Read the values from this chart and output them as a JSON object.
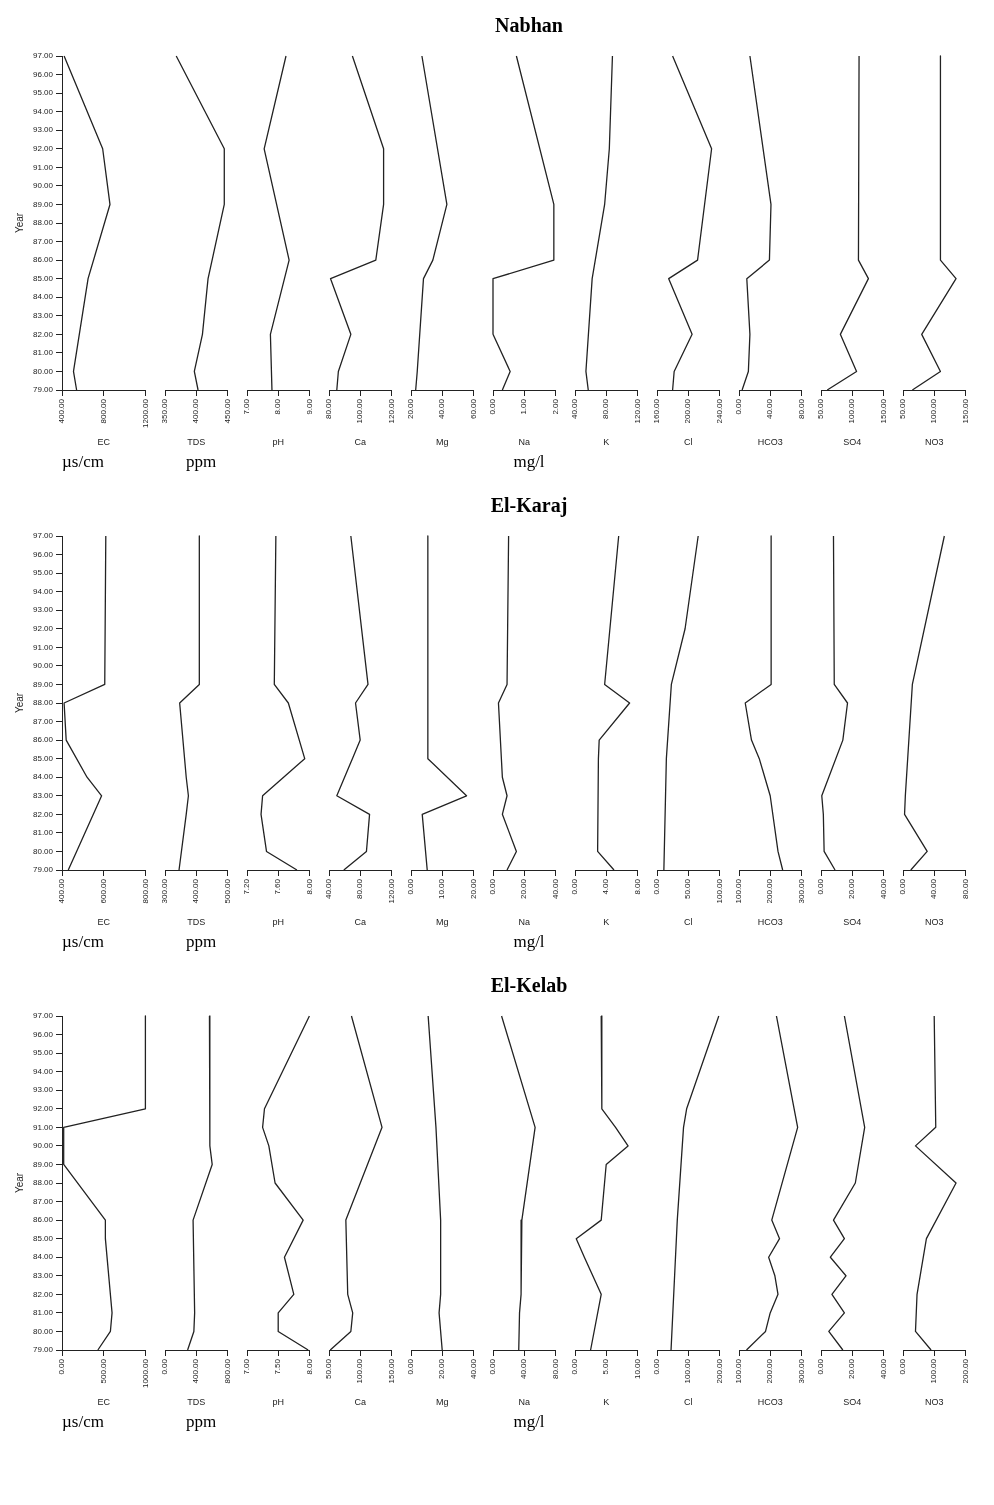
{
  "chart_data": [
    {
      "type": "line",
      "xlabel": "EC",
      "ylabel": "Year",
      "annotations": [
        "µs/cm"
      ],
      "color": "#222222",
      "x": [
        420,
        790,
        860,
        650,
        510,
        540
      ],
      "values": [
        97,
        92,
        89,
        85,
        80,
        79
      ],
      "xlim": [
        400,
        1200
      ],
      "xticks": [
        {
          "value": 400,
          "label": "400.00"
        },
        {
          "value": 800,
          "label": "800.00"
        },
        {
          "value": 1200,
          "label": "1200.00"
        }
      ],
      "ylim": [
        79,
        97
      ],
      "yticks": [
        {
          "value": 79,
          "label": "79.00"
        },
        {
          "value": 80,
          "label": "80.00"
        },
        {
          "value": 81,
          "label": "81.00"
        },
        {
          "value": 82,
          "label": "82.00"
        },
        {
          "value": 83,
          "label": "83.00"
        },
        {
          "value": 84,
          "label": "84.00"
        },
        {
          "value": 85,
          "label": "85.00"
        },
        {
          "value": 86,
          "label": "86.00"
        },
        {
          "value": 87,
          "label": "87.00"
        },
        {
          "value": 88,
          "label": "88.00"
        },
        {
          "value": 89,
          "label": "89.00"
        },
        {
          "value": 90,
          "label": "90.00"
        },
        {
          "value": 91,
          "label": "91.00"
        },
        {
          "value": 92,
          "label": "92.00"
        },
        {
          "value": 93,
          "label": "93.00"
        },
        {
          "value": 94,
          "label": "94.00"
        },
        {
          "value": 95,
          "label": "95.00"
        },
        {
          "value": 96,
          "label": "96.00"
        },
        {
          "value": 97,
          "label": "97.00"
        }
      ]
    },
    {
      "type": "line",
      "xlabel": "TDS",
      "annotations": [
        "ppm"
      ],
      "color": "#222222",
      "x": [
        368,
        445,
        445,
        419,
        410,
        397,
        403
      ],
      "values": [
        97,
        92,
        89,
        85,
        82,
        80,
        79
      ],
      "xlim": [
        350,
        450
      ],
      "xticks": [
        {
          "value": 350,
          "label": "350.00"
        },
        {
          "value": 400,
          "label": "400.00"
        },
        {
          "value": 450,
          "label": "450.00"
        }
      ],
      "ylim": [
        79,
        97
      ],
      "tick_labels": "x"
    },
    {
      "type": "line",
      "xlabel": "pH",
      "color": "#222222",
      "x": [
        8.25,
        7.55,
        8.35,
        7.75,
        7.8
      ],
      "values": [
        97,
        92,
        86,
        82,
        79
      ],
      "xlim": [
        7,
        9
      ],
      "xticks": [
        {
          "value": 7,
          "label": "7.00"
        },
        {
          "value": 8,
          "label": "8.00"
        },
        {
          "value": 9,
          "label": "9.00"
        }
      ],
      "ylim": [
        79,
        97
      ],
      "tick_labels": "x"
    },
    {
      "type": "line",
      "xlabel": "Ca",
      "color": "#222222",
      "x": [
        95,
        115,
        115,
        110,
        81,
        94,
        86,
        85
      ],
      "values": [
        97,
        92,
        89,
        86,
        85,
        82,
        80,
        79
      ],
      "xlim": [
        80,
        120
      ],
      "xticks": [
        {
          "value": 80,
          "label": "80.00"
        },
        {
          "value": 100,
          "label": "100.00"
        },
        {
          "value": 120,
          "label": "120.00"
        }
      ],
      "ylim": [
        79,
        97
      ],
      "tick_labels": "x"
    },
    {
      "type": "line",
      "xlabel": "Mg",
      "color": "#222222",
      "x": [
        27,
        43,
        34,
        28,
        24,
        23
      ],
      "values": [
        97,
        89,
        86,
        85,
        80,
        79
      ],
      "xlim": [
        20,
        60
      ],
      "xticks": [
        {
          "value": 20,
          "label": "20.00"
        },
        {
          "value": 40,
          "label": "40.00"
        },
        {
          "value": 60,
          "label": "60.00"
        }
      ],
      "ylim": [
        79,
        97
      ],
      "tick_labels": "x"
    },
    {
      "type": "line",
      "title": "Nabhan",
      "xlabel": "Na",
      "annotations": [
        "mg/l"
      ],
      "color": "#222222",
      "x": [
        0.75,
        1.95,
        1.95,
        0,
        0,
        0.55,
        0.3
      ],
      "values": [
        97,
        89,
        86,
        85,
        82,
        80,
        79
      ],
      "xlim": [
        0,
        2
      ],
      "xticks": [
        {
          "value": 0,
          "label": "0.00"
        },
        {
          "value": 1,
          "label": "1.00"
        },
        {
          "value": 2,
          "label": "2.00"
        }
      ],
      "ylim": [
        79,
        97
      ],
      "tick_labels": "x"
    },
    {
      "type": "line",
      "xlabel": "K",
      "color": "#222222",
      "x": [
        88,
        84,
        78,
        62,
        54,
        57
      ],
      "values": [
        97,
        92,
        89,
        85,
        80,
        79
      ],
      "xlim": [
        40,
        120
      ],
      "xticks": [
        {
          "value": 40,
          "label": "40.00"
        },
        {
          "value": 80,
          "label": "80.00"
        },
        {
          "value": 120,
          "label": "120.00"
        }
      ],
      "ylim": [
        79,
        97
      ],
      "tick_labels": "x"
    },
    {
      "type": "line",
      "xlabel": "Cl",
      "color": "#222222",
      "x": [
        180,
        230,
        212,
        175,
        205,
        182,
        180
      ],
      "values": [
        97,
        92,
        86,
        85,
        82,
        80,
        79
      ],
      "xlim": [
        160,
        240
      ],
      "xticks": [
        {
          "value": 160,
          "label": "160.00"
        },
        {
          "value": 200,
          "label": "200.00"
        },
        {
          "value": 240,
          "label": "240.00"
        }
      ],
      "ylim": [
        79,
        97
      ],
      "tick_labels": "x"
    },
    {
      "type": "line",
      "xlabel": "HCO3",
      "color": "#222222",
      "x": [
        14,
        41,
        39,
        10,
        14,
        12,
        4
      ],
      "values": [
        97,
        89,
        86,
        85,
        82,
        80,
        79
      ],
      "xlim": [
        0,
        80
      ],
      "xticks": [
        {
          "value": 0,
          "label": "0.00"
        },
        {
          "value": 40,
          "label": "40.00"
        },
        {
          "value": 80,
          "label": "80.00"
        }
      ],
      "ylim": [
        79,
        97
      ],
      "tick_labels": "x"
    },
    {
      "type": "line",
      "xlabel": "SO4",
      "color": "#222222",
      "x": [
        111,
        110,
        126,
        81,
        107,
        60
      ],
      "values": [
        97,
        86,
        85,
        82,
        80,
        79
      ],
      "xlim": [
        50,
        150
      ],
      "xticks": [
        {
          "value": 50,
          "label": "50.00"
        },
        {
          "value": 100,
          "label": "100.00"
        },
        {
          "value": 150,
          "label": "150.00"
        }
      ],
      "ylim": [
        79,
        97
      ],
      "tick_labels": "x"
    },
    {
      "type": "line",
      "xlabel": "NO3",
      "color": "#222222",
      "x": [
        110,
        110,
        135,
        80,
        110,
        65
      ],
      "values": [
        97,
        86,
        85,
        82,
        80,
        79
      ],
      "xlim": [
        50,
        150
      ],
      "xticks": [
        {
          "value": 50,
          "label": "50.00"
        },
        {
          "value": 100,
          "label": "100.00"
        },
        {
          "value": 150,
          "label": "150.00"
        }
      ],
      "ylim": [
        79,
        97
      ],
      "tick_labels": "x"
    },
    {
      "type": "line",
      "xlabel": "EC",
      "ylabel": "Year",
      "annotations": [
        "µs/cm"
      ],
      "color": "#222222",
      "x": [
        610,
        605,
        410,
        420,
        520,
        590,
        470,
        430
      ],
      "values": [
        97,
        89,
        88,
        86,
        84,
        83,
        80,
        79
      ],
      "xlim": [
        400,
        800
      ],
      "xticks": [
        {
          "value": 400,
          "label": "400.00"
        },
        {
          "value": 600,
          "label": "600.00"
        },
        {
          "value": 800,
          "label": "800.00"
        }
      ],
      "ylim": [
        79,
        97
      ],
      "yticks": [
        {
          "value": 79,
          "label": "79.00"
        },
        {
          "value": 80,
          "label": "80.00"
        },
        {
          "value": 81,
          "label": "81.00"
        },
        {
          "value": 82,
          "label": "82.00"
        },
        {
          "value": 83,
          "label": "83.00"
        },
        {
          "value": 84,
          "label": "84.00"
        },
        {
          "value": 85,
          "label": "85.00"
        },
        {
          "value": 86,
          "label": "86.00"
        },
        {
          "value": 87,
          "label": "87.00"
        },
        {
          "value": 88,
          "label": "88.00"
        },
        {
          "value": 89,
          "label": "89.00"
        },
        {
          "value": 90,
          "label": "90.00"
        },
        {
          "value": 91,
          "label": "91.00"
        },
        {
          "value": 92,
          "label": "92.00"
        },
        {
          "value": 93,
          "label": "93.00"
        },
        {
          "value": 94,
          "label": "94.00"
        },
        {
          "value": 95,
          "label": "95.00"
        },
        {
          "value": 96,
          "label": "96.00"
        },
        {
          "value": 97,
          "label": "97.00"
        }
      ]
    },
    {
      "type": "line",
      "xlabel": "TDS",
      "annotations": [
        "ppm"
      ],
      "color": "#222222",
      "x": [
        410,
        410,
        347,
        368,
        375,
        368,
        345
      ],
      "values": [
        97,
        89,
        88,
        84,
        83,
        82,
        79
      ],
      "xlim": [
        300,
        500
      ],
      "xticks": [
        {
          "value": 300,
          "label": "300.00"
        },
        {
          "value": 400,
          "label": "400.00"
        },
        {
          "value": 500,
          "label": "500.00"
        }
      ],
      "ylim": [
        79,
        97
      ],
      "tick_labels": "x"
    },
    {
      "type": "line",
      "xlabel": "pH",
      "color": "#222222",
      "x": [
        7.57,
        7.55,
        7.73,
        7.94,
        7.4,
        7.38,
        7.45,
        7.84
      ],
      "values": [
        97,
        89,
        88,
        85,
        83,
        82,
        80,
        79
      ],
      "xlim": [
        7.2,
        8
      ],
      "xticks": [
        {
          "value": 7.2,
          "label": "7.20"
        },
        {
          "value": 7.6,
          "label": "7.60"
        },
        {
          "value": 8,
          "label": "8.00"
        }
      ],
      "ylim": [
        79,
        97
      ],
      "tick_labels": "x"
    },
    {
      "type": "line",
      "xlabel": "Ca",
      "color": "#222222",
      "x": [
        68,
        90,
        74,
        80,
        70,
        50,
        92,
        88,
        59
      ],
      "values": [
        97,
        89,
        88,
        86,
        85,
        83,
        82,
        80,
        79
      ],
      "xlim": [
        40,
        120
      ],
      "xticks": [
        {
          "value": 40,
          "label": "40.00"
        },
        {
          "value": 80,
          "label": "80.00"
        },
        {
          "value": 120,
          "label": "120.00"
        }
      ],
      "ylim": [
        79,
        97
      ],
      "tick_labels": "x"
    },
    {
      "type": "line",
      "xlabel": "Mg",
      "color": "#222222",
      "x": [
        5.4,
        5.4,
        17.8,
        3.6,
        5.2
      ],
      "values": [
        97,
        85,
        83,
        82,
        79
      ],
      "xlim": [
        0,
        20
      ],
      "xticks": [
        {
          "value": 0,
          "label": "0.00"
        },
        {
          "value": 10,
          "label": "10.00"
        },
        {
          "value": 20,
          "label": "20.00"
        }
      ],
      "ylim": [
        79,
        97
      ],
      "tick_labels": "x"
    },
    {
      "type": "line",
      "title": "El-Karaj",
      "xlabel": "Na",
      "annotations": [
        "mg/l"
      ],
      "color": "#222222",
      "x": [
        10,
        9,
        3.5,
        6,
        9,
        6,
        15,
        9
      ],
      "values": [
        97,
        89,
        88,
        84,
        83,
        82,
        80,
        79
      ],
      "xlim": [
        0,
        40
      ],
      "xticks": [
        {
          "value": 0,
          "label": "0.00"
        },
        {
          "value": 20,
          "label": "20.00"
        },
        {
          "value": 40,
          "label": "40.00"
        }
      ],
      "ylim": [
        79,
        97
      ],
      "tick_labels": "x"
    },
    {
      "type": "line",
      "xlabel": "K",
      "color": "#222222",
      "x": [
        5.6,
        3.8,
        7,
        3.1,
        3,
        2.9,
        5
      ],
      "values": [
        97,
        89,
        88,
        86,
        85,
        80,
        79
      ],
      "xlim": [
        0,
        8
      ],
      "xticks": [
        {
          "value": 0,
          "label": "0.00"
        },
        {
          "value": 4,
          "label": "4.00"
        },
        {
          "value": 8,
          "label": "8.00"
        }
      ],
      "ylim": [
        79,
        97
      ],
      "tick_labels": "x"
    },
    {
      "type": "line",
      "xlabel": "Cl",
      "color": "#222222",
      "x": [
        66,
        45,
        23,
        21,
        15,
        11
      ],
      "values": [
        97,
        92,
        89,
        88,
        85,
        79
      ],
      "xlim": [
        0,
        100
      ],
      "xticks": [
        {
          "value": 0,
          "label": "0.00"
        },
        {
          "value": 50,
          "label": "50.00"
        },
        {
          "value": 100,
          "label": "100.00"
        }
      ],
      "ylim": [
        79,
        97
      ],
      "tick_labels": "x"
    },
    {
      "type": "line",
      "xlabel": "HCO3",
      "color": "#222222",
      "x": [
        203,
        203,
        120,
        140,
        165,
        200,
        225,
        240
      ],
      "values": [
        97,
        89,
        88,
        86,
        85,
        83,
        80,
        79
      ],
      "xlim": [
        100,
        300
      ],
      "xticks": [
        {
          "value": 100,
          "label": "100.00"
        },
        {
          "value": 200,
          "label": "200.00"
        },
        {
          "value": 300,
          "label": "300.00"
        }
      ],
      "ylim": [
        79,
        97
      ],
      "tick_labels": "x"
    },
    {
      "type": "line",
      "xlabel": "SO4",
      "color": "#222222",
      "x": [
        8,
        8.5,
        17,
        14,
        0.5,
        1.5,
        2,
        9
      ],
      "values": [
        97,
        89,
        88,
        86,
        83,
        82,
        80,
        79
      ],
      "xlim": [
        0,
        40
      ],
      "xticks": [
        {
          "value": 0,
          "label": "0.00"
        },
        {
          "value": 20,
          "label": "20.00"
        },
        {
          "value": 40,
          "label": "40.00"
        }
      ],
      "ylim": [
        79,
        97
      ],
      "tick_labels": "x"
    },
    {
      "type": "line",
      "xlabel": "NO3",
      "color": "#222222",
      "x": [
        53,
        12,
        6,
        3,
        2,
        31,
        10
      ],
      "values": [
        97,
        89,
        85,
        83,
        82,
        80,
        79
      ],
      "xlim": [
        0,
        80
      ],
      "xticks": [
        {
          "value": 0,
          "label": "0.00"
        },
        {
          "value": 40,
          "label": "40.00"
        },
        {
          "value": 80,
          "label": "80.00"
        }
      ],
      "ylim": [
        79,
        97
      ],
      "tick_labels": "x"
    },
    {
      "type": "line",
      "xlabel": "EC",
      "ylabel": "Year",
      "annotations": [
        "µs/cm"
      ],
      "color": "#222222",
      "x": [
        1000,
        1000,
        20,
        20,
        520,
        520,
        600,
        580,
        430
      ],
      "values": [
        97,
        92,
        91,
        89,
        86,
        85,
        81,
        80,
        79
      ],
      "xlim": [
        0,
        1000
      ],
      "xticks": [
        {
          "value": 0,
          "label": "0.00"
        },
        {
          "value": 500,
          "label": "500.00"
        },
        {
          "value": 1000,
          "label": "1000.00"
        }
      ],
      "ylim": [
        79,
        97
      ],
      "yticks": [
        {
          "value": 79,
          "label": "79.00"
        },
        {
          "value": 80,
          "label": "80.00"
        },
        {
          "value": 81,
          "label": "81.00"
        },
        {
          "value": 82,
          "label": "82.00"
        },
        {
          "value": 83,
          "label": "83.00"
        },
        {
          "value": 84,
          "label": "84.00"
        },
        {
          "value": 85,
          "label": "85.00"
        },
        {
          "value": 86,
          "label": "86.00"
        },
        {
          "value": 87,
          "label": "87.00"
        },
        {
          "value": 88,
          "label": "88.00"
        },
        {
          "value": 89,
          "label": "89.00"
        },
        {
          "value": 90,
          "label": "90.00"
        },
        {
          "value": 91,
          "label": "91.00"
        },
        {
          "value": 92,
          "label": "92.00"
        },
        {
          "value": 93,
          "label": "93.00"
        },
        {
          "value": 94,
          "label": "94.00"
        },
        {
          "value": 95,
          "label": "95.00"
        },
        {
          "value": 96,
          "label": "96.00"
        },
        {
          "value": 97,
          "label": "97.00"
        }
      ]
    },
    {
      "type": "line",
      "xlabel": "TDS",
      "annotations": [
        "ppm"
      ],
      "color": "#222222",
      "x": [
        570,
        575,
        605,
        360,
        380,
        370,
        290
      ],
      "values": [
        97,
        90,
        89,
        86,
        81,
        80,
        79
      ],
      "xlim": [
        0,
        800
      ],
      "xticks": [
        {
          "value": 0,
          "label": "0.00"
        },
        {
          "value": 400,
          "label": "400.00"
        },
        {
          "value": 800,
          "label": "800.00"
        }
      ],
      "ylim": [
        79,
        97
      ],
      "tick_labels": "x"
    },
    {
      "type": "line",
      "xlabel": "pH",
      "color": "#222222",
      "x": [
        8,
        7.28,
        7.25,
        7.35,
        7.45,
        7.9,
        7.6,
        7.75,
        7.5,
        7.5,
        7.98
      ],
      "values": [
        97,
        92,
        91,
        90,
        88,
        86,
        84,
        82,
        81,
        80,
        79
      ],
      "xlim": [
        7,
        8
      ],
      "xticks": [
        {
          "value": 7,
          "label": "7.00"
        },
        {
          "value": 7.5,
          "label": "7.50"
        },
        {
          "value": 8,
          "label": "8.00"
        }
      ],
      "ylim": [
        79,
        97
      ],
      "tick_labels": "x"
    },
    {
      "type": "line",
      "xlabel": "Ca",
      "color": "#222222",
      "x": [
        86,
        135,
        77,
        80,
        88,
        85,
        52
      ],
      "values": [
        97,
        91,
        86,
        82,
        81,
        80,
        79
      ],
      "xlim": [
        50,
        150
      ],
      "xticks": [
        {
          "value": 50,
          "label": "50.00"
        },
        {
          "value": 100,
          "label": "100.00"
        },
        {
          "value": 150,
          "label": "150.00"
        }
      ],
      "ylim": [
        79,
        97
      ],
      "tick_labels": "x"
    },
    {
      "type": "line",
      "xlabel": "Mg",
      "color": "#222222",
      "x": [
        11,
        16,
        19,
        19,
        18,
        20
      ],
      "values": [
        97,
        91,
        86,
        82,
        81,
        79
      ],
      "xlim": [
        0,
        40
      ],
      "xticks": [
        {
          "value": 0,
          "label": "0.00"
        },
        {
          "value": 20,
          "label": "20.00"
        },
        {
          "value": 40,
          "label": "40.00"
        }
      ],
      "ylim": [
        79,
        97
      ],
      "tick_labels": "x"
    },
    {
      "type": "line",
      "title": "El-Kelab",
      "xlabel": "Na",
      "annotations": [
        "mg/l"
      ],
      "color": "#222222",
      "x": [
        11,
        54,
        37,
        36,
        34,
        33
      ],
      "values": [
        97,
        91,
        86,
        82,
        81,
        79
      ],
      "xlim": [
        0,
        80
      ],
      "xticks": [
        {
          "value": 0,
          "label": "0.00"
        },
        {
          "value": 40,
          "label": "40.00"
        },
        {
          "value": 80,
          "label": "80.00"
        }
      ],
      "ylim": [
        79,
        97
      ],
      "tick_labels": "x"
    },
    {
      "type": "line",
      "xlabel": "K",
      "color": "#222222",
      "x": [
        4.2,
        4.3,
        6.5,
        8.5,
        5,
        4.2,
        0.2,
        1.5,
        4.2,
        2.5
      ],
      "values": [
        97,
        92,
        91,
        90,
        89,
        86,
        85,
        84,
        82,
        79
      ],
      "xlim": [
        0,
        10
      ],
      "xticks": [
        {
          "value": 0,
          "label": "0.00"
        },
        {
          "value": 5,
          "label": "5.00"
        },
        {
          "value": 10,
          "label": "10.00"
        }
      ],
      "ylim": [
        79,
        97
      ],
      "tick_labels": "x"
    },
    {
      "type": "line",
      "xlabel": "Cl",
      "color": "#222222",
      "x": [
        198,
        95,
        85,
        65,
        45
      ],
      "values": [
        97,
        92,
        91,
        86,
        79
      ],
      "xlim": [
        0,
        200
      ],
      "xticks": [
        {
          "value": 0,
          "label": "0.00"
        },
        {
          "value": 100,
          "label": "100.00"
        },
        {
          "value": 200,
          "label": "200.00"
        }
      ],
      "ylim": [
        79,
        97
      ],
      "tick_labels": "x"
    },
    {
      "type": "line",
      "xlabel": "HCO3",
      "color": "#222222",
      "x": [
        220,
        288,
        205,
        230,
        195,
        215,
        225,
        200,
        185,
        124
      ],
      "values": [
        97,
        91,
        86,
        85,
        84,
        83,
        82,
        81,
        80,
        79
      ],
      "xlim": [
        100,
        300
      ],
      "xticks": [
        {
          "value": 100,
          "label": "100.00"
        },
        {
          "value": 200,
          "label": "200.00"
        },
        {
          "value": 300,
          "label": "300.00"
        }
      ],
      "ylim": [
        79,
        97
      ],
      "tick_labels": "x"
    },
    {
      "type": "line",
      "xlabel": "SO4",
      "color": "#222222",
      "x": [
        15,
        28,
        22,
        8,
        15,
        6,
        16,
        7,
        15,
        5,
        14
      ],
      "values": [
        97,
        91,
        88,
        86,
        85,
        84,
        83,
        82,
        81,
        80,
        79
      ],
      "xlim": [
        0,
        40
      ],
      "xticks": [
        {
          "value": 0,
          "label": "0.00"
        },
        {
          "value": 20,
          "label": "20.00"
        },
        {
          "value": 40,
          "label": "40.00"
        }
      ],
      "ylim": [
        79,
        97
      ],
      "tick_labels": "x"
    },
    {
      "type": "line",
      "xlabel": "NO3",
      "color": "#222222",
      "x": [
        100,
        105,
        40,
        170,
        75,
        45,
        40,
        90
      ],
      "values": [
        97,
        91,
        90,
        88,
        85,
        82,
        80,
        79
      ],
      "xlim": [
        0,
        200
      ],
      "xticks": [
        {
          "value": 0,
          "label": "0.00"
        },
        {
          "value": 100,
          "label": "100.00"
        },
        {
          "value": 200,
          "label": "200.00"
        }
      ],
      "ylim": [
        79,
        97
      ],
      "tick_labels": "x"
    }
  ]
}
